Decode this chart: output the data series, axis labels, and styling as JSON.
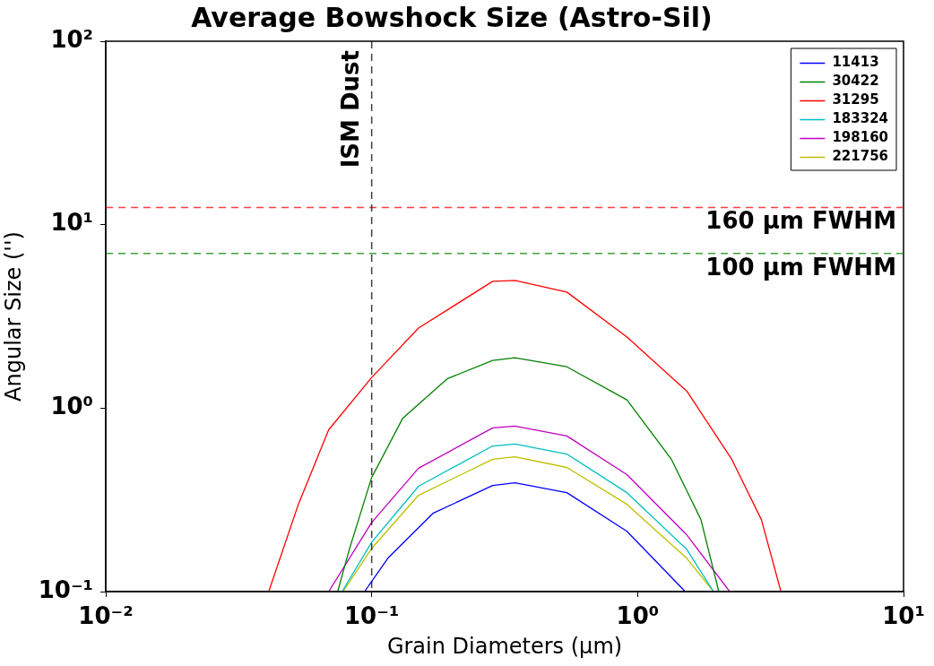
{
  "chart_data": {
    "type": "line",
    "title": "Average Bowshock Size (Astro-Sil)",
    "xlabel": "Grain Diameters (μm)",
    "ylabel": "Angular Size ('')",
    "log": "xy",
    "grid": false,
    "legend": "top right",
    "marker": "none",
    "line_style": "solid",
    "xlim": [
      0.01,
      10
    ],
    "ylim": [
      0.1,
      100
    ],
    "xticks": [
      {
        "value": 0.01,
        "label": "10⁻²"
      },
      {
        "value": 0.1,
        "label": "10⁻¹"
      },
      {
        "value": 1,
        "label": "10⁰"
      },
      {
        "value": 10,
        "label": "10¹"
      }
    ],
    "yticks": [
      {
        "value": 0.1,
        "label": "10⁻¹"
      },
      {
        "value": 1,
        "label": "10⁰"
      },
      {
        "value": 10,
        "label": "10¹"
      },
      {
        "value": 100,
        "label": "10²"
      }
    ],
    "series": [
      {
        "name": "11413",
        "color": "#0000ff",
        "x": [
          0.094,
          0.115,
          0.17,
          0.285,
          0.346,
          0.542,
          0.912,
          1.51
        ],
        "values": [
          0.1,
          0.152,
          0.267,
          0.379,
          0.392,
          0.346,
          0.213,
          0.1
        ]
      },
      {
        "name": "30422",
        "color": "#008000",
        "x": [
          0.0745,
          0.0824,
          0.1,
          0.131,
          0.193,
          0.285,
          0.346,
          0.542,
          0.912,
          1.34,
          1.73,
          2.02
        ],
        "values": [
          0.1,
          0.17,
          0.419,
          0.883,
          1.45,
          1.82,
          1.88,
          1.68,
          1.11,
          0.526,
          0.247,
          0.1
        ]
      },
      {
        "name": "31295",
        "color": "#ff0000",
        "x": [
          0.041,
          0.053,
          0.0689,
          0.1,
          0.15,
          0.285,
          0.346,
          0.542,
          0.912,
          1.53,
          2.26,
          2.92,
          3.46
        ],
        "values": [
          0.1,
          0.299,
          0.762,
          1.47,
          2.73,
          4.91,
          4.97,
          4.29,
          2.44,
          1.24,
          0.526,
          0.247,
          0.1
        ]
      },
      {
        "name": "183324",
        "color": "#00bfbf",
        "x": [
          0.0774,
          0.1,
          0.15,
          0.285,
          0.346,
          0.542,
          0.912,
          1.53,
          1.93
        ],
        "values": [
          0.1,
          0.186,
          0.375,
          0.622,
          0.637,
          0.562,
          0.346,
          0.17,
          0.1
        ]
      },
      {
        "name": "198160",
        "color": "#bf00bf",
        "x": [
          0.0689,
          0.1,
          0.15,
          0.285,
          0.346,
          0.542,
          0.912,
          1.53,
          2.22
        ],
        "values": [
          0.1,
          0.238,
          0.47,
          0.78,
          0.798,
          0.705,
          0.434,
          0.204,
          0.1
        ]
      },
      {
        "name": "221756",
        "color": "#bfbf00",
        "x": [
          0.078,
          0.1,
          0.15,
          0.285,
          0.346,
          0.542,
          0.912,
          1.53,
          1.93
        ],
        "values": [
          0.1,
          0.172,
          0.335,
          0.526,
          0.543,
          0.475,
          0.299,
          0.152,
          0.1
        ]
      }
    ],
    "ref_lines": [
      {
        "axis": "y",
        "value": 12.4,
        "label": "160 μm FWHM",
        "color": "#ff0000",
        "line_style": "dashed"
      },
      {
        "axis": "y",
        "value": 6.97,
        "label": "100 μm FWHM",
        "color": "#008000",
        "line_style": "dashed"
      },
      {
        "axis": "x",
        "value": 0.1,
        "label": "ISM Dust",
        "color": "#000000",
        "line_style": "dashed"
      }
    ]
  }
}
